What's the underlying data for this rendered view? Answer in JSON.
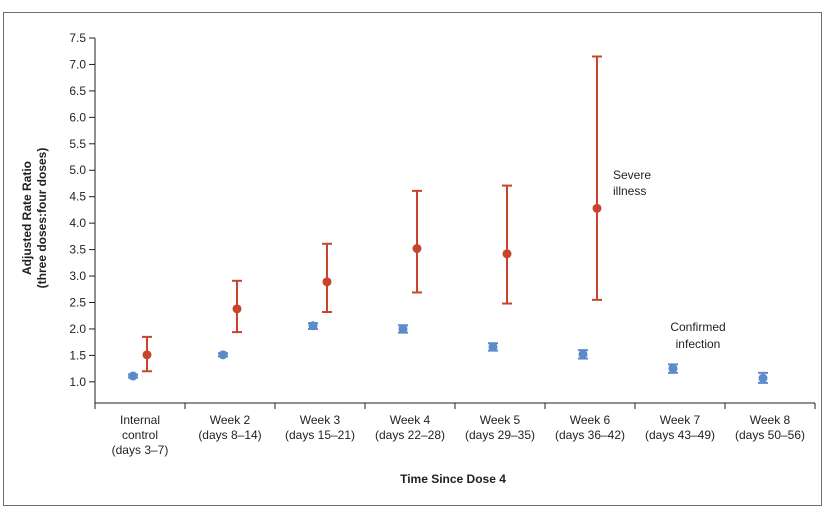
{
  "chart_data": {
    "type": "scatter",
    "ylabel_lines": [
      "Adjusted Rate Ratio",
      "(three doses:four doses)"
    ],
    "xlabel": "Time Since Dose 4",
    "ylim": [
      0.6,
      7.5
    ],
    "yticks": [
      "1.0",
      "1.5",
      "2.0",
      "2.5",
      "3.0",
      "3.5",
      "4.0",
      "4.5",
      "5.0",
      "5.5",
      "6.0",
      "6.5",
      "7.0",
      "7.5"
    ],
    "grid": false,
    "categories": [
      [
        "Internal",
        "control",
        "(days 3–7)"
      ],
      [
        "Week 2",
        "(days 8–14)"
      ],
      [
        "Week 3",
        "(days 15–21)"
      ],
      [
        "Week 4",
        "(days 22–28)"
      ],
      [
        "Week 5",
        "(days 29–35)"
      ],
      [
        "Week 6",
        "(days 36–42)"
      ],
      [
        "Week 7",
        "(days 43–49)"
      ],
      [
        "Week 8",
        "(days 50–56)"
      ]
    ],
    "series": [
      {
        "name_lines": [
          "Severe",
          "illness"
        ],
        "color": "#c8452c",
        "values": [
          1.51,
          2.38,
          2.89,
          3.52,
          3.42,
          4.28
        ],
        "lower": [
          1.2,
          1.94,
          2.32,
          2.69,
          2.48,
          2.55
        ],
        "upper": [
          1.85,
          2.91,
          3.61,
          4.61,
          4.71,
          7.15
        ]
      },
      {
        "name_lines": [
          "Confirmed",
          "infection"
        ],
        "color": "#5b8cc9",
        "values": [
          1.11,
          1.51,
          2.06,
          2.0,
          1.66,
          1.52,
          1.25,
          1.07
        ],
        "lower": [
          1.08,
          1.48,
          2.0,
          1.93,
          1.59,
          1.44,
          1.17,
          0.98
        ],
        "upper": [
          1.14,
          1.54,
          2.11,
          2.07,
          1.73,
          1.6,
          1.33,
          1.17
        ]
      }
    ]
  }
}
